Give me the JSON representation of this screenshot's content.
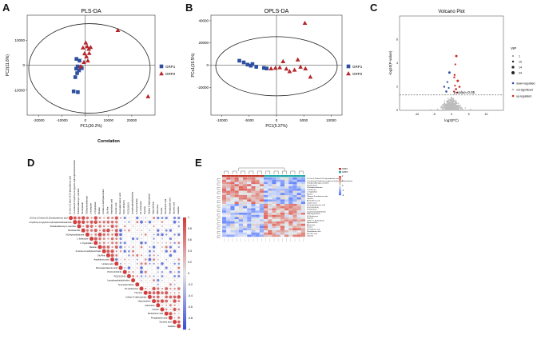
{
  "panel_letters": [
    "A",
    "B",
    "C",
    "D",
    "E"
  ],
  "chart_data": [
    {
      "panel": "A",
      "type": "scatter",
      "title": "PLS-DA",
      "xlabel": "PC1(30.2%)",
      "ylabel": "PC2(11.8%)",
      "xlim": [
        -25000,
        30000
      ],
      "ylim": [
        -20000,
        20000
      ],
      "xticks": [
        -20000,
        -10000,
        0,
        10000,
        20000
      ],
      "yticks": [
        -10000,
        0,
        10000
      ],
      "legend": "right",
      "series": [
        {
          "name": "GRP1",
          "marker": "square",
          "color": "#2e4f9e",
          "x": [
            -5000,
            -3200,
            -3500,
            -2700,
            -1800,
            -4300,
            -3800,
            -2500,
            -1500,
            -3900,
            -3300
          ],
          "y": [
            -10500,
            -10800,
            -3200,
            -2100,
            -1000,
            -4800,
            2500,
            1800,
            -1200,
            -1400,
            -500
          ]
        },
        {
          "name": "GRP2",
          "marker": "triangle",
          "color": "#b5252b",
          "x": [
            -1000,
            200,
            800,
            1500,
            1700,
            2300,
            -300,
            500,
            1100,
            -2000,
            14000,
            27000,
            -600
          ],
          "y": [
            7000,
            9000,
            7500,
            6500,
            4800,
            7200,
            4700,
            3500,
            1800,
            -500,
            14000,
            -12500,
            1200
          ]
        }
      ]
    },
    {
      "panel": "B",
      "type": "scatter",
      "title": "OPLS-DA",
      "xlabel": "PC1(5.37%)",
      "ylabel": "PCo1(19.5%)",
      "xlim": [
        -12000,
        12000
      ],
      "ylim": [
        -45000,
        45000
      ],
      "xticks": [
        -10000,
        -5000,
        0,
        5000,
        10000
      ],
      "yticks": [
        -20000,
        0,
        20000,
        40000
      ],
      "legend": "right",
      "series": [
        {
          "name": "GRP1",
          "marker": "square",
          "color": "#2e4f9e",
          "x": [
            -6800,
            -6000,
            -5300,
            -4700,
            -4400,
            -3700,
            -2300,
            -1800
          ],
          "y": [
            4000,
            2500,
            500,
            -500,
            1000,
            -1500,
            -2500,
            -3000
          ]
        },
        {
          "name": "GRP2",
          "marker": "triangle",
          "color": "#b5252b",
          "x": [
            -1000,
            -200,
            600,
            1200,
            1800,
            2400,
            3300,
            3900,
            4400,
            5300,
            6200,
            5200
          ],
          "y": [
            -3000,
            -2500,
            -2000,
            3500,
            -3200,
            -5500,
            -4200,
            5000,
            -1500,
            -3000,
            -10500,
            38000
          ]
        }
      ]
    },
    {
      "panel": "C",
      "type": "scatter",
      "title": "Volcano Plot",
      "xlabel": "log2(FC)",
      "ylabel": "-log10(P-value)",
      "xlim": [
        -15,
        15
      ],
      "ylim": [
        0,
        8
      ],
      "xticks": [
        -10,
        -5,
        0,
        5,
        10
      ],
      "yticks": [
        0,
        2,
        4,
        6
      ],
      "threshold_y": 1.3,
      "threshold_label": "p-value=0.05",
      "legend": "right",
      "legend_size_title": "VIP",
      "legend_sizes": [
        "1",
        "10",
        "14",
        "24"
      ],
      "series": [
        {
          "name": "down-regulated",
          "color": "#2e4f9e",
          "x": [
            -1.2,
            -0.8,
            -1.5,
            -0.6,
            -2.1
          ],
          "y": [
            2.4,
            1.9,
            1.6,
            3.2,
            2.0
          ]
        },
        {
          "name": "not-significant",
          "color": "#bdbdbd",
          "x": [
            -3,
            -2.5,
            -2,
            -1.5,
            -1,
            -0.8,
            -0.5,
            -0.3,
            0,
            0.2,
            0.4,
            0.6,
            0.9,
            1.2,
            1.5,
            2,
            2.6,
            3.2,
            -4,
            4,
            -6,
            5.5
          ],
          "y": [
            0.2,
            0.5,
            0.8,
            0.3,
            1.0,
            0.6,
            0.9,
            0.4,
            1.1,
            0.7,
            0.3,
            1.0,
            0.5,
            0.8,
            0.2,
            0.6,
            0.4,
            0.1,
            0.1,
            0.2,
            0.05,
            0.1
          ]
        },
        {
          "name": "up-regulated",
          "color": "#cc2a2a",
          "x": [
            0.7,
            1.0,
            1.3,
            1.8,
            0.9,
            1.1,
            1.6,
            2.3,
            1.4,
            0.8
          ],
          "y": [
            1.6,
            2.1,
            1.8,
            2.5,
            3.0,
            3.9,
            1.5,
            2.0,
            4.6,
            2.8
          ]
        }
      ]
    },
    {
      "panel": "D",
      "type": "heatmap",
      "title": "Correlation",
      "colorbar_ticks": [
        "1",
        "0.8",
        "0.6",
        "0.4",
        "0.2",
        "0",
        "-0.2",
        "-0.4",
        "-0.6",
        "-0.8",
        "-1"
      ],
      "row_labels": [
        "12-Oxo-2,3-dinor-10,15-phytodienoic acid",
        "1-Linolenoyl-2-hydroxy-sn-glycero-3-phosphoethanolamine",
        "Tetradecadienoyl-L-carnitine",
        "Nicotinamide",
        "3-Dehydroshikimate",
        "L-Isoleucine",
        "L-Tryptophan",
        "Betaine",
        "2-Amino-3-methylsuccinate",
        "Gly-Phe",
        "Arachidonic acid",
        "Linoleic acid",
        "Docosapentaenoic acid",
        "PC(O-16:0/2:0)",
        "PC(15:0/0:0)",
        "Lysophosphatidylcholine",
        "N-Acetylornithine",
        "DL-Norleucine",
        "Thymine",
        "Uridine 5'-diphosphate",
        "Hypoxanthine",
        "Adenosine",
        "Inosine",
        "Pantothenic acid",
        "Pyroglutamic acid",
        "Succinic acid",
        "Guanine"
      ],
      "values_note": "triangular correlation matrix; red positive, blue negative"
    },
    {
      "panel": "E",
      "type": "heatmap",
      "groups": [
        "GRP1",
        "GRP2"
      ],
      "group_colors": [
        "#c0392b",
        "#27a7a7"
      ],
      "colorbar_ticks": [
        "2",
        "1",
        "0",
        "-1",
        "-2"
      ],
      "n_columns": 20,
      "row_labels": [
        "12-Oxo-2,3-dinor-10,15-phytodienoic acid",
        "1-Linolenoyl-2-hydroxy-sn-glycero-3-phosphoethanolamine",
        "Tetradecadienoyl-L-carnitine",
        "Nicotinamide",
        "3-Dehydroshikimate",
        "L-Isoleucine",
        "L-Tryptophan",
        "Betaine",
        "2-Amino-3-methylsuccinate",
        "Gly-Phe",
        "Arachidonic acid",
        "Linoleic acid",
        "Docosapentaenoic acid",
        "PC(O-16:0/2:0)",
        "PC(15:0/0:0)",
        "Lysophosphatidylcholine",
        "N-Acetylornithine",
        "DL-Norleucine",
        "Thymine",
        "Uridine 5'-diphosphate",
        "Hypoxanthine",
        "Adenosine",
        "Inosine",
        "Pantothenic acid",
        "Pyroglutamic acid",
        "Succinic acid",
        "Guanine"
      ]
    }
  ]
}
